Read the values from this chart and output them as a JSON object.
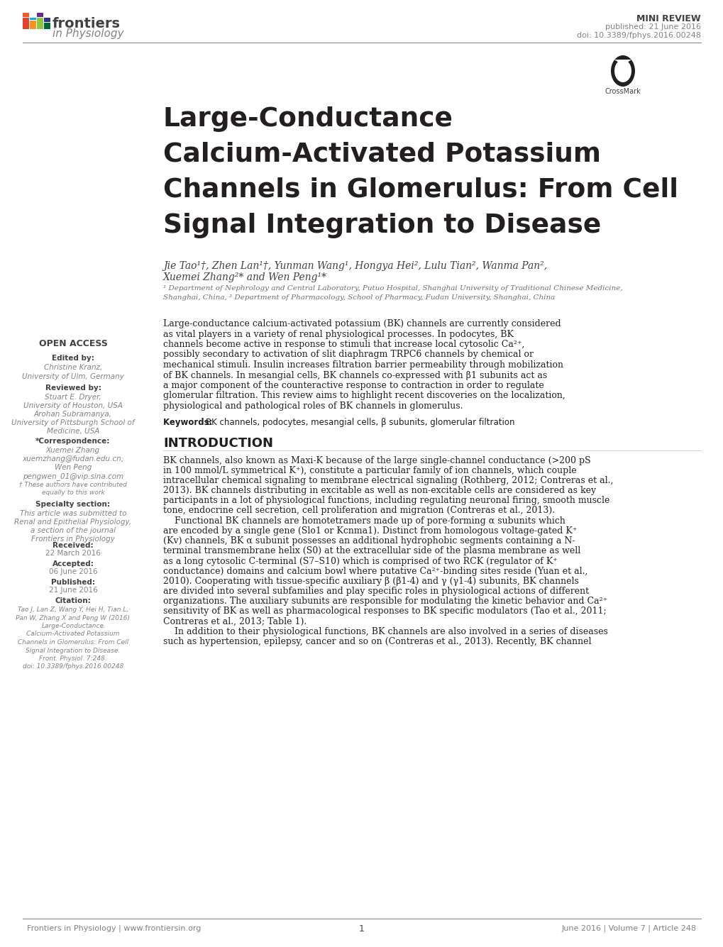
{
  "bg_color": "#ffffff",
  "mini_review": "MINI REVIEW",
  "published_line": "published: 21 June 2016",
  "doi_line": "doi: 10.3389/fphys.2016.00248",
  "title_line1": "Large-Conductance",
  "title_line2": "Calcium-Activated Potassium",
  "title_line3": "Channels in Glomerulus: From Cell",
  "title_line4": "Signal Integration to Disease",
  "authors_line1": "Jie Tao¹†, Zhen Lan¹†, Yunman Wang¹, Hongya Hei², Lulu Tian², Wanma Pan²,",
  "authors_line2": "Xuemei Zhang²* and Wen Peng¹*",
  "affil1": "¹ Department of Nephrology and Central Laboratory, Putuo Hospital, Shanghai University of Traditional Chinese Medicine,",
  "affil2": "Shanghai, China, ² Department of Pharmacology, School of Pharmacy, Fudan University, Shanghai, China",
  "open_access": "OPEN ACCESS",
  "edited_by_label": "Edited by:",
  "edited_by_1": "Christine Kranz,",
  "edited_by_2": "University of Ulm, Germany",
  "reviewed_by_label": "Reviewed by:",
  "reviewed_by_1": "Stuart E. Dryer,",
  "reviewed_by_2": "University of Houston, USA",
  "reviewed_by_3": "Arohan Subramanya,",
  "reviewed_by_4": "University of Pittsburgh School of",
  "reviewed_by_5": "Medicine, USA",
  "correspondence_label": "*Correspondence:",
  "corr_1": "Xuemei Zhang",
  "corr_2": "xuemzhang@fudan.edu.cn;",
  "corr_3": "Wen Peng",
  "corr_4": "pengwen_01@vip.sina.com",
  "dagger_1": "† These authors have contributed",
  "dagger_2": "equally to this work",
  "specialty_label": "Specialty section:",
  "specialty_1": "This article was submitted to",
  "specialty_2": "Renal and Epithelial Physiology,",
  "specialty_3": "a section of the journal",
  "specialty_4": "Frontiers in Physiology",
  "received_label": "Received:",
  "received_val": "22 March 2016",
  "accepted_label": "Accepted:",
  "accepted_val": "06 June 2016",
  "published_label": "Published:",
  "published_val": "21 June 2016",
  "citation_label": "Citation:",
  "citation_1": "Tao J, Lan Z, Wang Y, Hei H, Tian L,",
  "citation_2": "Pan W, Zhang X and Peng W (2016)",
  "citation_3": "Large-Conductance",
  "citation_4": "Calcium-Activated Potassium",
  "citation_5": "Channels in Glomerulus: From Cell",
  "citation_6": "Signal Integration to Disease.",
  "citation_7": "Front. Physiol. 7:248.",
  "citation_8": "doi: 10.3389/fphys.2016.00248",
  "abstract_p1": "Large-conductance calcium-activated potassium (BK) channels are currently considered",
  "abstract_p2": "as vital players in a variety of renal physiological processes. In podocytes, BK",
  "abstract_p3": "channels become active in response to stimuli that increase local cytosolic Ca²⁺,",
  "abstract_p4": "possibly secondary to activation of slit diaphragm TRPC6 channels by chemical or",
  "abstract_p5": "mechanical stimuli. Insulin increases filtration barrier permeability through mobilization",
  "abstract_p6": "of BK channels. In mesangial cells, BK channels co-expressed with β1 subunits act as",
  "abstract_p7": "a major component of the counteractive response to contraction in order to regulate",
  "abstract_p8": "glomerular filtration. This review aims to highlight recent discoveries on the localization,",
  "abstract_p9": "physiological and pathological roles of BK channels in glomerulus.",
  "keywords_bold": "Keywords: ",
  "keywords_rest": "BK channels, podocytes, mesangial cells, β subunits, glomerular filtration",
  "intro_heading": "INTRODUCTION",
  "intro_1": "BK channels, also known as Maxi-K because of the large single-channel conductance (>200 pS",
  "intro_2": "in 100 mmol/L symmetrical K⁺), constitute a particular family of ion channels, which couple",
  "intro_3": "intracellular chemical signaling to membrane electrical signaling (Rothberg, 2012; Contreras et al.,",
  "intro_4": "2013). BK channels distributing in excitable as well as non-excitable cells are considered as key",
  "intro_5": "participants in a lot of physiological functions, including regulating neuronal firing, smooth muscle",
  "intro_6": "tone, endocrine cell secretion, cell proliferation and migration (Contreras et al., 2013).",
  "intro_7": "    Functional BK channels are homotetramers made up of pore-forming α subunits which",
  "intro_8": "are encoded by a single gene (Slo1 or Kcnma1). Distinct from homologous voltage-gated K⁺",
  "intro_9": "(Kv) channels, BK α subunit possesses an additional hydrophobic segments containing a N-",
  "intro_10": "terminal transmembrane helix (S0) at the extracellular side of the plasma membrane as well",
  "intro_11": "as a long cytosolic C-terminal (S7–S10) which is comprised of two RCK (regulator of K⁺",
  "intro_12": "conductance) domains and calcium bowl where putative Ca²⁺-binding sites reside (Yuan et al.,",
  "intro_13": "2010). Cooperating with tissue-specific auxiliary β (β1-4) and γ (γ1-4) subunits, BK channels",
  "intro_14": "are divided into several subfamilies and play specific roles in physiological actions of different",
  "intro_15": "organizations. The auxiliary subunits are responsible for modulating the kinetic behavior and Ca²⁺",
  "intro_16": "sensitivity of BK as well as pharmacological responses to BK specific modulators (Tao et al., 2011;",
  "intro_17": "Contreras et al., 2013; Table 1).",
  "intro_18": "    In addition to their physiological functions, BK channels are also involved in a series of diseases",
  "intro_19": "such as hypertension, epilepsy, cancer and so on (Contreras et al., 2013). Recently, BK channel",
  "footer_left": "Frontiers in Physiology | www.frontiersin.org",
  "footer_center": "1",
  "footer_right": "June 2016 | Volume 7 | Article 248"
}
